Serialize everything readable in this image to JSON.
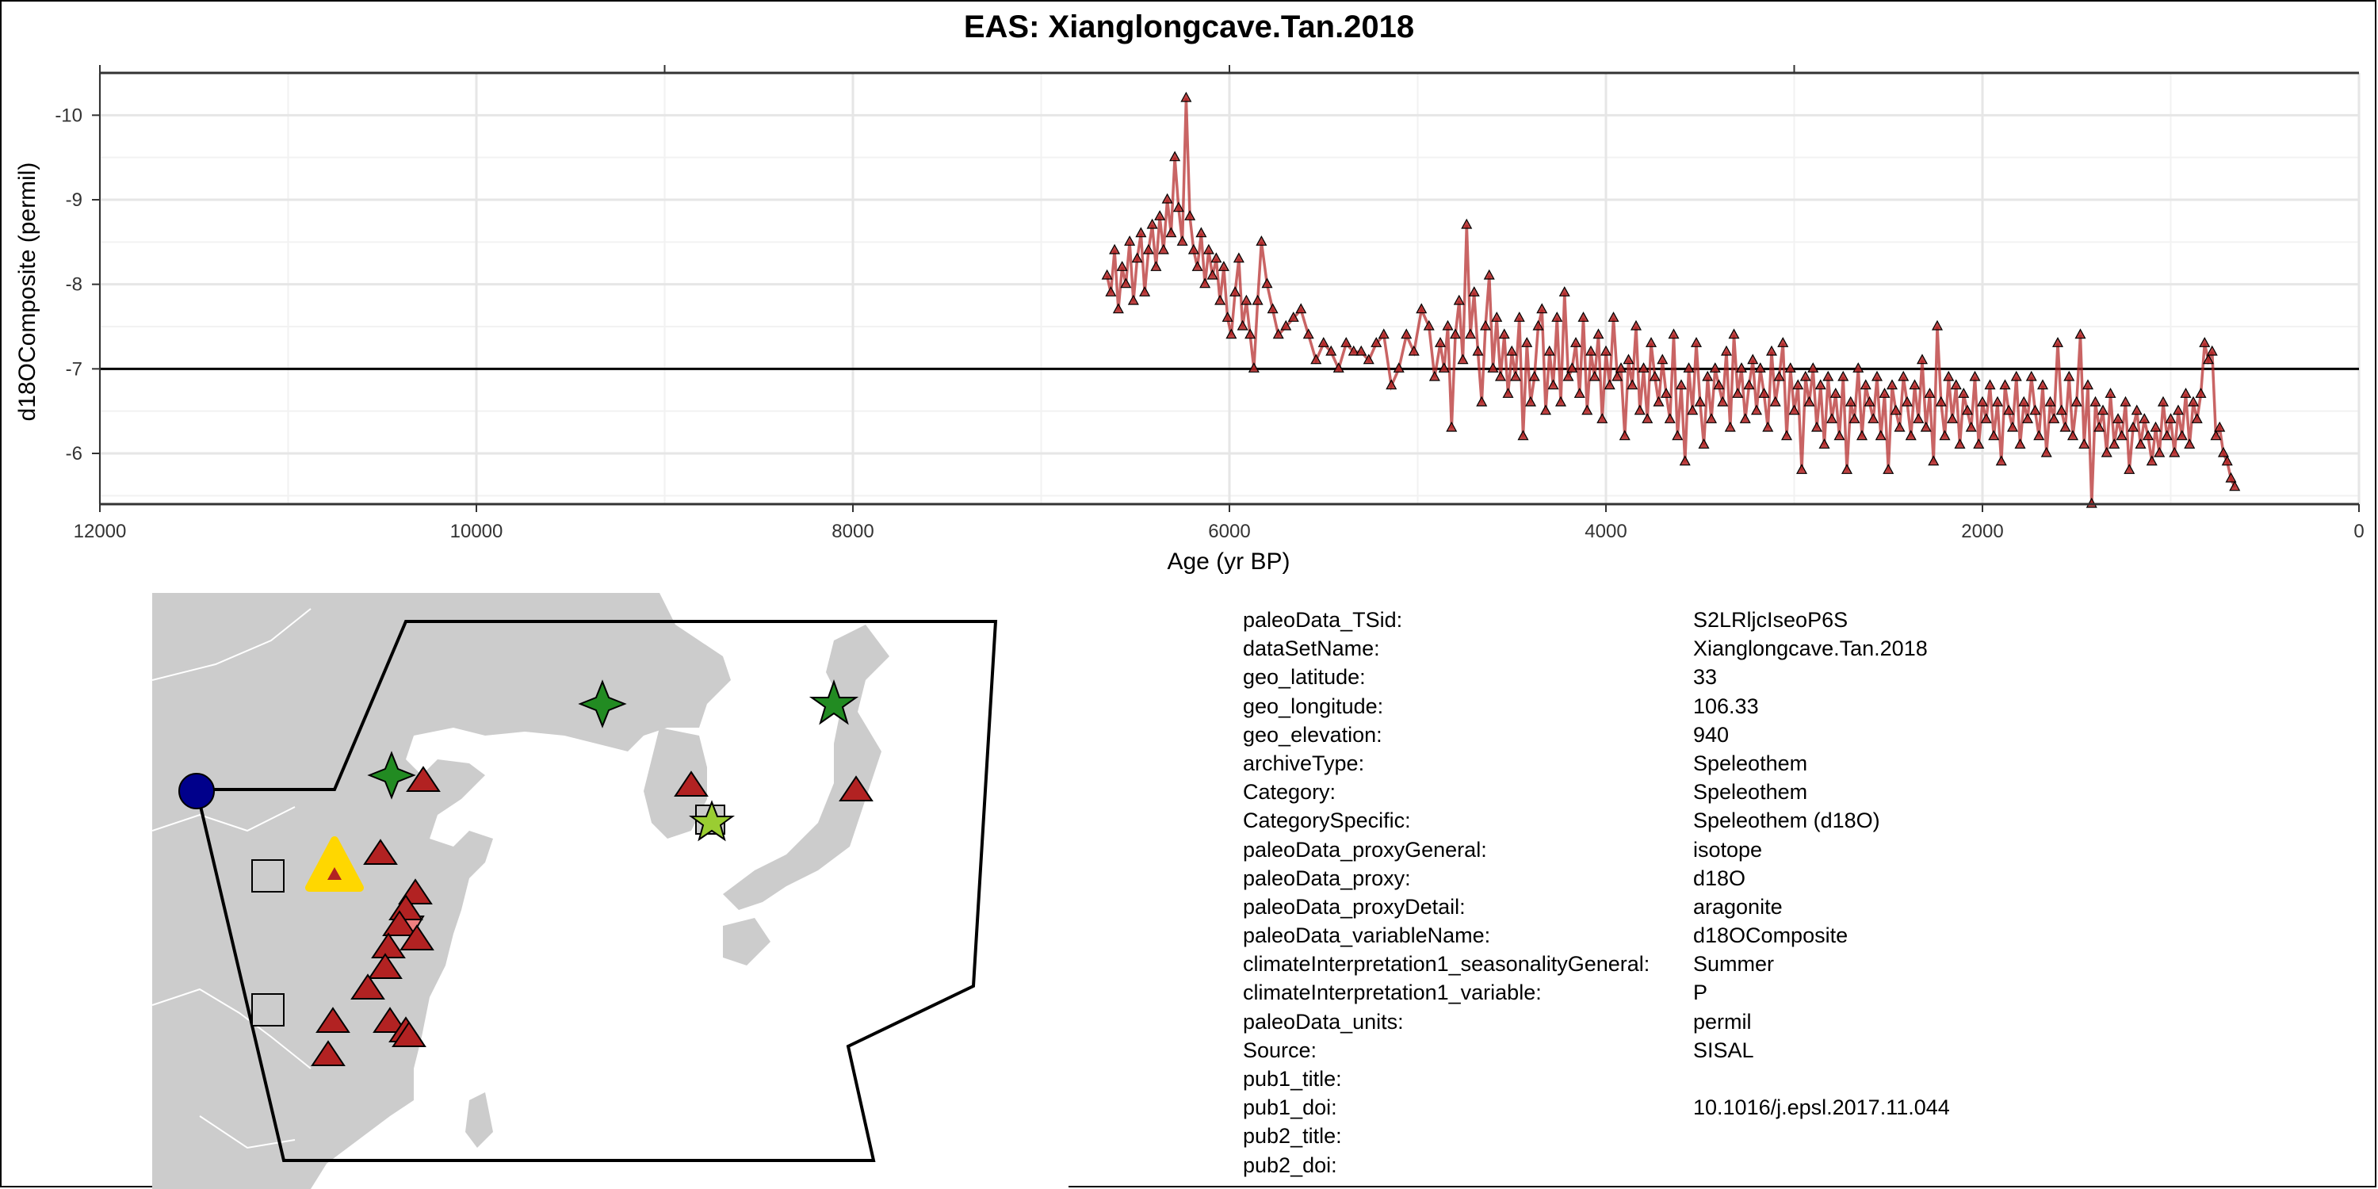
{
  "title": "EAS: Xianglongcave.Tan.2018",
  "chart_data": {
    "type": "line",
    "markers": "triangle",
    "color": "#b22222",
    "x_reversed": true,
    "y_reversed": true,
    "grid": true,
    "reference_line_y": -7,
    "xlabel": "Age (yr BP)",
    "ylabel": "d18OComposite (permil)",
    "xlim": [
      12000,
      0
    ],
    "ylim": [
      -10.5,
      -5.4
    ],
    "xticks": [
      "12000",
      "10000",
      "8000",
      "6000",
      "4000",
      "2000",
      "0"
    ],
    "yticks": [
      "-10",
      "-9",
      "-8",
      "-7",
      "-6"
    ],
    "series": [
      {
        "x": [
          6650,
          6630,
          6610,
          6590,
          6570,
          6550,
          6530,
          6510,
          6490,
          6470,
          6450,
          6430,
          6410,
          6390,
          6370,
          6350,
          6330,
          6310,
          6290,
          6270,
          6250,
          6230,
          6210,
          6190,
          6170,
          6150,
          6130,
          6110,
          6090,
          6070,
          6050,
          6030,
          6010,
          5990,
          5970,
          5950,
          5930,
          5910,
          5890,
          5870,
          5850,
          5830,
          5800,
          5770,
          5740,
          5700,
          5660,
          5620,
          5580,
          5540,
          5500,
          5460,
          5420,
          5380,
          5340,
          5300,
          5260,
          5220,
          5180,
          5140,
          5100,
          5060,
          5020,
          4980,
          4940,
          4910,
          4880,
          4860,
          4840,
          4820,
          4800,
          4780,
          4760,
          4740,
          4720,
          4700,
          4680,
          4660,
          4640,
          4620,
          4600,
          4580,
          4560,
          4540,
          4520,
          4500,
          4480,
          4460,
          4440,
          4420,
          4400,
          4380,
          4360,
          4340,
          4320,
          4300,
          4280,
          4260,
          4240,
          4220,
          4200,
          4180,
          4160,
          4140,
          4120,
          4100,
          4080,
          4060,
          4040,
          4020,
          4000,
          3980,
          3960,
          3940,
          3920,
          3900,
          3880,
          3860,
          3840,
          3820,
          3800,
          3780,
          3760,
          3740,
          3720,
          3700,
          3680,
          3660,
          3640,
          3620,
          3600,
          3580,
          3560,
          3540,
          3520,
          3500,
          3480,
          3460,
          3440,
          3420,
          3400,
          3380,
          3360,
          3340,
          3320,
          3300,
          3280,
          3260,
          3240,
          3220,
          3200,
          3180,
          3160,
          3140,
          3120,
          3100,
          3080,
          3060,
          3040,
          3020,
          3000,
          2980,
          2960,
          2940,
          2920,
          2900,
          2880,
          2860,
          2840,
          2820,
          2800,
          2780,
          2760,
          2740,
          2720,
          2700,
          2680,
          2660,
          2640,
          2620,
          2600,
          2580,
          2560,
          2540,
          2520,
          2500,
          2480,
          2460,
          2440,
          2420,
          2400,
          2380,
          2360,
          2340,
          2320,
          2300,
          2280,
          2260,
          2240,
          2220,
          2200,
          2180,
          2160,
          2140,
          2120,
          2100,
          2080,
          2060,
          2040,
          2020,
          2000,
          1980,
          1960,
          1940,
          1920,
          1900,
          1880,
          1860,
          1840,
          1820,
          1800,
          1780,
          1760,
          1740,
          1720,
          1700,
          1680,
          1660,
          1640,
          1620,
          1600,
          1580,
          1560,
          1540,
          1520,
          1500,
          1480,
          1460,
          1440,
          1420,
          1400,
          1380,
          1360,
          1340,
          1320,
          1300,
          1280,
          1260,
          1240,
          1220,
          1200,
          1180,
          1160,
          1140,
          1120,
          1100,
          1080,
          1060,
          1040,
          1020,
          1000,
          980,
          960,
          940,
          920,
          900,
          880,
          860,
          840,
          820,
          800,
          780,
          760,
          740,
          720,
          700,
          680,
          660
        ],
        "y": [
          -8.1,
          -7.9,
          -8.4,
          -7.7,
          -8.2,
          -8.0,
          -8.5,
          -7.8,
          -8.3,
          -8.6,
          -7.9,
          -8.4,
          -8.7,
          -8.2,
          -8.8,
          -8.4,
          -9.0,
          -8.6,
          -9.5,
          -8.9,
          -8.5,
          -10.2,
          -8.8,
          -8.4,
          -8.2,
          -8.6,
          -8.0,
          -8.4,
          -8.1,
          -8.3,
          -7.8,
          -8.2,
          -7.6,
          -7.4,
          -7.9,
          -8.3,
          -7.5,
          -7.8,
          -7.4,
          -7.0,
          -7.8,
          -8.5,
          -8.0,
          -7.7,
          -7.4,
          -7.5,
          -7.6,
          -7.7,
          -7.4,
          -7.1,
          -7.3,
          -7.2,
          -7.0,
          -7.3,
          -7.2,
          -7.2,
          -7.1,
          -7.3,
          -7.4,
          -6.8,
          -7.0,
          -7.4,
          -7.2,
          -7.7,
          -7.5,
          -6.9,
          -7.3,
          -7.0,
          -7.5,
          -6.3,
          -7.4,
          -7.8,
          -7.1,
          -8.7,
          -7.4,
          -7.9,
          -7.2,
          -6.6,
          -7.5,
          -8.1,
          -7.0,
          -7.6,
          -6.9,
          -7.4,
          -6.7,
          -7.2,
          -6.9,
          -7.6,
          -6.2,
          -7.3,
          -6.6,
          -6.9,
          -7.5,
          -7.7,
          -6.5,
          -7.2,
          -6.8,
          -7.6,
          -6.6,
          -7.9,
          -6.9,
          -7.0,
          -7.3,
          -6.7,
          -7.6,
          -6.5,
          -7.2,
          -6.9,
          -7.4,
          -6.4,
          -7.2,
          -6.8,
          -7.6,
          -6.9,
          -7.0,
          -6.2,
          -7.1,
          -6.8,
          -7.5,
          -6.5,
          -7.0,
          -6.4,
          -7.3,
          -6.9,
          -6.6,
          -7.1,
          -6.7,
          -6.4,
          -7.4,
          -6.2,
          -6.8,
          -5.9,
          -7.0,
          -6.5,
          -7.3,
          -6.6,
          -6.1,
          -6.9,
          -6.4,
          -7.0,
          -6.8,
          -6.6,
          -7.2,
          -6.3,
          -7.4,
          -6.7,
          -7.0,
          -6.4,
          -6.8,
          -7.1,
          -6.5,
          -7.0,
          -6.7,
          -6.3,
          -7.2,
          -6.6,
          -6.9,
          -7.3,
          -6.2,
          -7.0,
          -6.5,
          -6.8,
          -5.8,
          -6.9,
          -6.6,
          -7.0,
          -6.3,
          -6.8,
          -6.1,
          -6.9,
          -6.4,
          -6.7,
          -6.2,
          -6.9,
          -5.8,
          -6.6,
          -6.4,
          -7.0,
          -6.2,
          -6.8,
          -6.6,
          -6.4,
          -6.9,
          -6.2,
          -6.7,
          -5.8,
          -6.8,
          -6.5,
          -6.3,
          -6.9,
          -6.6,
          -6.2,
          -6.8,
          -6.4,
          -7.1,
          -6.3,
          -6.7,
          -5.9,
          -7.5,
          -6.6,
          -6.2,
          -6.9,
          -6.4,
          -6.8,
          -6.1,
          -6.7,
          -6.5,
          -6.3,
          -6.9,
          -6.1,
          -6.6,
          -6.4,
          -6.8,
          -6.2,
          -6.6,
          -5.9,
          -6.8,
          -6.5,
          -6.3,
          -6.9,
          -6.1,
          -6.6,
          -6.4,
          -6.9,
          -6.5,
          -6.2,
          -6.8,
          -6.0,
          -6.6,
          -6.4,
          -7.3,
          -6.5,
          -6.3,
          -6.9,
          -6.2,
          -6.6,
          -7.4,
          -6.1,
          -6.8,
          -5.4,
          -6.6,
          -6.3,
          -6.5,
          -6.0,
          -6.7,
          -6.1,
          -6.4,
          -6.2,
          -6.6,
          -5.8,
          -6.3,
          -6.5,
          -6.1,
          -6.4,
          -6.2,
          -5.9,
          -6.3,
          -6.0,
          -6.6,
          -6.2,
          -6.4,
          -6.0,
          -6.5,
          -6.2,
          -6.7,
          -6.1,
          -6.6,
          -6.4,
          -6.7,
          -7.3,
          -7.1,
          -7.2,
          -6.2,
          -6.3,
          -6.0,
          -5.9,
          -5.7,
          -5.6
        ]
      }
    ]
  },
  "map": {
    "land_color": "#cccccc",
    "water_color": "#ffffff",
    "target_marker_color": "#ffd700",
    "markers": [
      {
        "shape": "circle",
        "color": "#00008b"
      },
      {
        "shape": "square",
        "color": "#cccccc"
      },
      {
        "shape": "square",
        "color": "#cccccc"
      },
      {
        "shape": "star4",
        "color": "#228b22"
      },
      {
        "shape": "star4",
        "color": "#228b22"
      },
      {
        "shape": "star5",
        "color": "#228b22"
      },
      {
        "shape": "star5",
        "color": "#9acd32"
      },
      {
        "shape": "triangle-down",
        "color": "#f08080"
      },
      {
        "shape": "triangle",
        "color": "#b22222"
      }
    ]
  },
  "metadata": [
    {
      "key": "paleoData_TSid:",
      "value": "S2LRljcIseoP6S"
    },
    {
      "key": "dataSetName:",
      "value": "Xianglongcave.Tan.2018"
    },
    {
      "key": "geo_latitude:",
      "value": "33"
    },
    {
      "key": "geo_longitude:",
      "value": "106.33"
    },
    {
      "key": "geo_elevation:",
      "value": "940"
    },
    {
      "key": "archiveType:",
      "value": "Speleothem"
    },
    {
      "key": "Category:",
      "value": "Speleothem"
    },
    {
      "key": "CategorySpecific:",
      "value": "Speleothem (d18O)"
    },
    {
      "key": "paleoData_proxyGeneral:",
      "value": "isotope"
    },
    {
      "key": "paleoData_proxy:",
      "value": "d18O"
    },
    {
      "key": "paleoData_proxyDetail:",
      "value": "aragonite"
    },
    {
      "key": "paleoData_variableName:",
      "value": "d18OComposite"
    },
    {
      "key": "climateInterpretation1_seasonalityGeneral:",
      "value": "Summer"
    },
    {
      "key": "climateInterpretation1_variable:",
      "value": "P"
    },
    {
      "key": "paleoData_units:",
      "value": "permil"
    },
    {
      "key": "Source:",
      "value": "SISAL"
    },
    {
      "key": "pub1_title:",
      "value": ""
    },
    {
      "key": "pub1_doi:",
      "value": "10.1016/j.epsl.2017.11.044"
    },
    {
      "key": "pub2_title:",
      "value": ""
    },
    {
      "key": "pub2_doi:",
      "value": ""
    }
  ]
}
